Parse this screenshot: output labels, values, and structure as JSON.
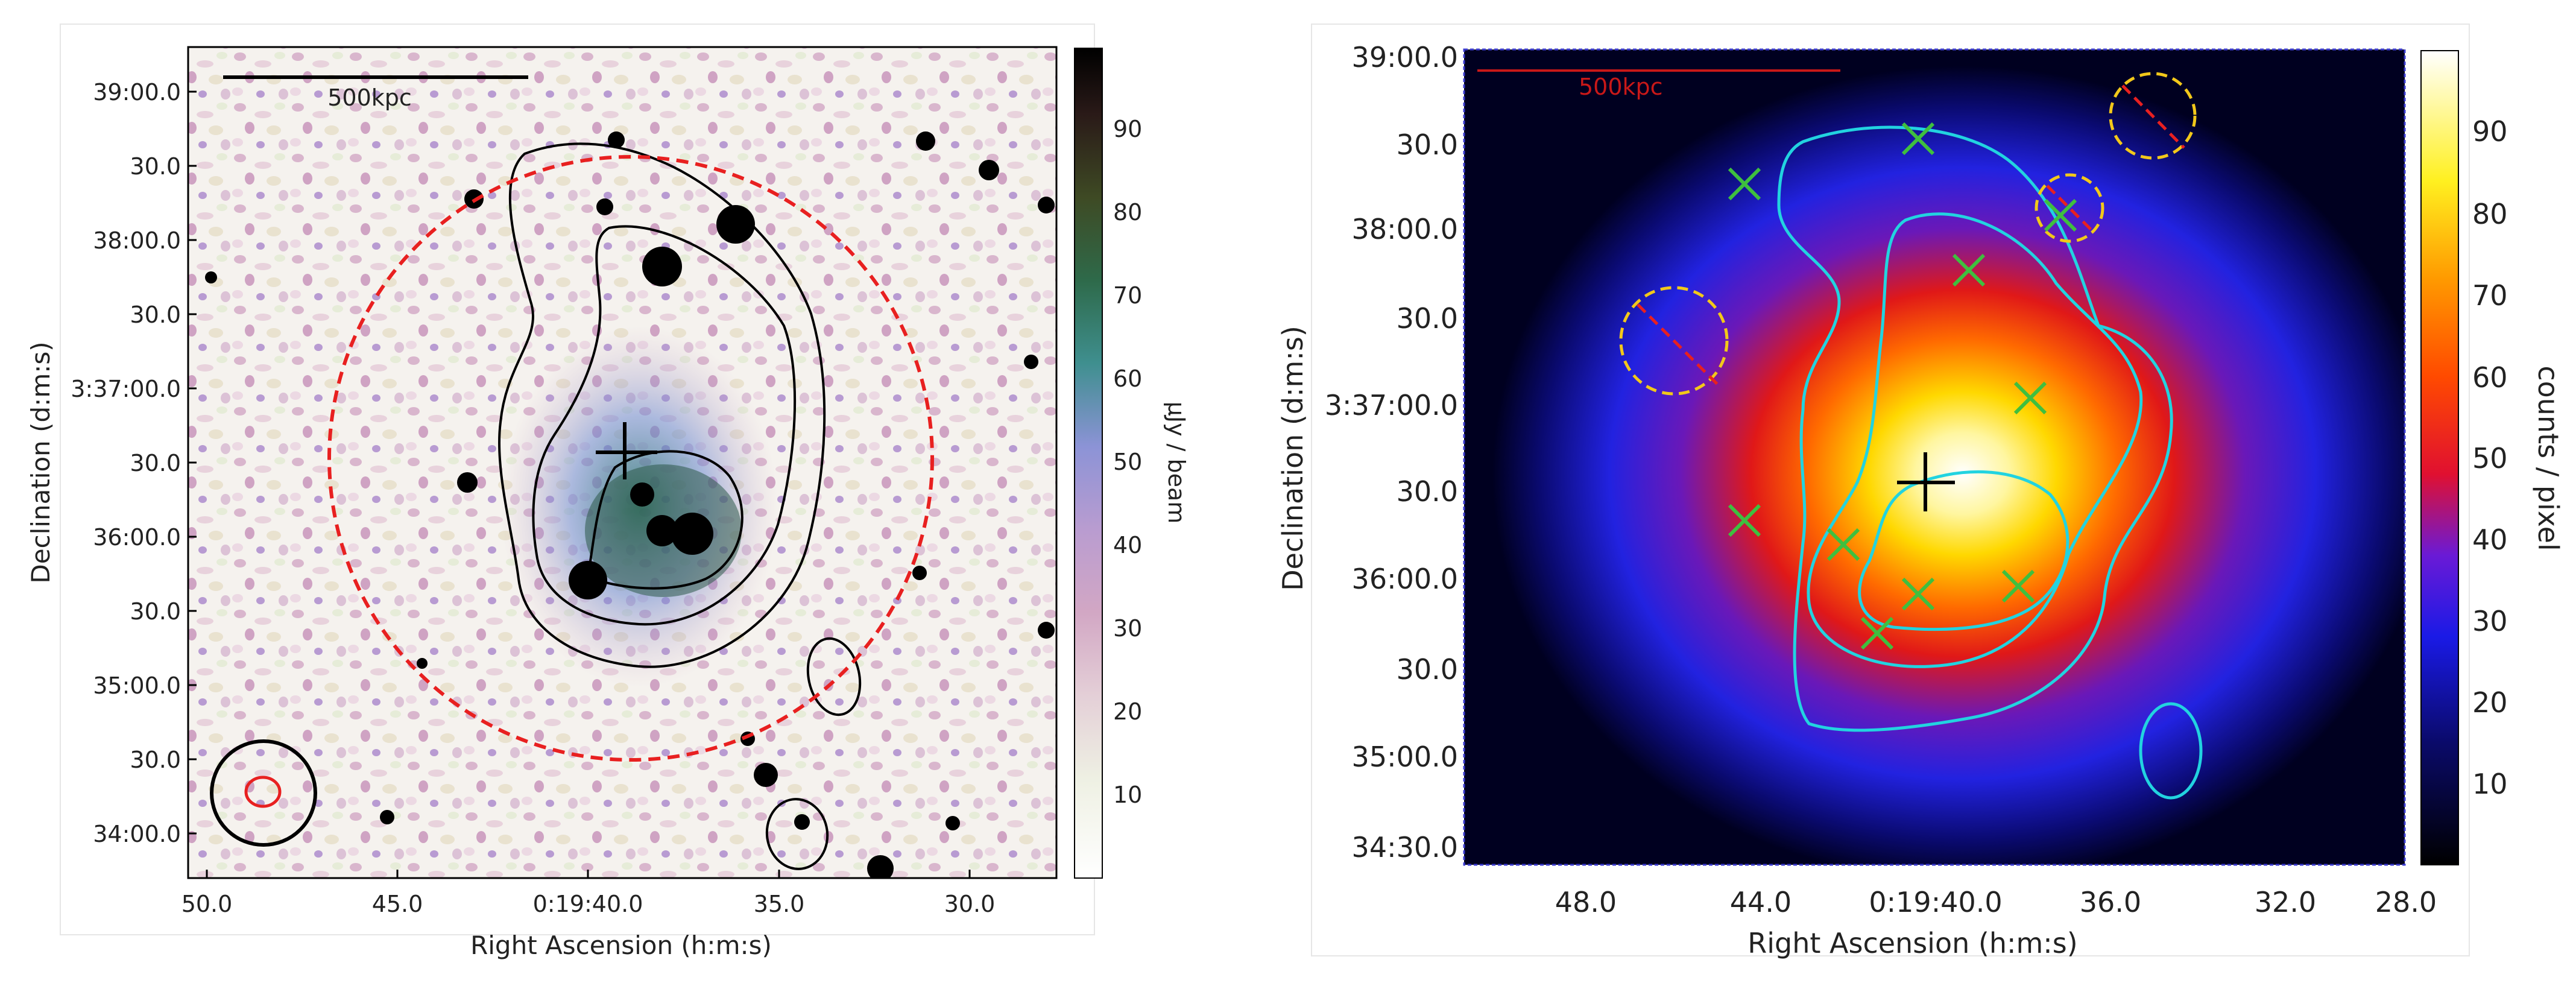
{
  "panels": [
    {
      "id": "radio",
      "title": "",
      "xlabel": "Right Ascension (h:m:s)",
      "ylabel": "Declination (d:m:s)",
      "x_ticks": [
        "50.0",
        "45.0",
        "0:19:40.0",
        "35.0",
        "30.0"
      ],
      "y_ticks": [
        "39:00.0",
        "30.0",
        "38:00.0",
        "30.0",
        "3:37:00.0",
        "30.0",
        "36:00.0",
        "30.0",
        "35:00.0",
        "30.0",
        "34:00.0"
      ],
      "scale_bar": "500kpc",
      "colorbar": {
        "label": "μJy / beam",
        "ticks": [
          "90",
          "80",
          "70",
          "60",
          "50",
          "40",
          "30",
          "20",
          "10"
        ],
        "colormap": "cubehelix-light",
        "range": [
          0,
          100
        ]
      },
      "colors": {
        "contour": "#000000",
        "circle": "#e82020",
        "beam_outer": "#000000",
        "beam_inner": "#e82020"
      }
    },
    {
      "id": "xray",
      "title": "",
      "xlabel": "Right Ascension (h:m:s)",
      "ylabel": "Declination (d:m:s)",
      "x_ticks": [
        "48.0",
        "44.0",
        "0:19:40.0",
        "36.0",
        "32.0",
        "28.0"
      ],
      "y_ticks": [
        "39:00.0",
        "30.0",
        "38:00.0",
        "30.0",
        "3:37:00.0",
        "30.0",
        "36:00.0",
        "30.0",
        "35:00.0",
        "34:30.0"
      ],
      "scale_bar": "500kpc",
      "colorbar": {
        "label": "counts / pixel",
        "ticks": [
          "90",
          "80",
          "70",
          "60",
          "50",
          "40",
          "30",
          "20",
          "10"
        ],
        "colormap": "heat",
        "range": [
          0,
          100
        ]
      },
      "colors": {
        "contour": "#22d3e0",
        "marker_x": "#3fbf3f",
        "exclusion": "#f2c81a",
        "slash": "#e82020",
        "scale_bar": "#c81818"
      }
    }
  ]
}
